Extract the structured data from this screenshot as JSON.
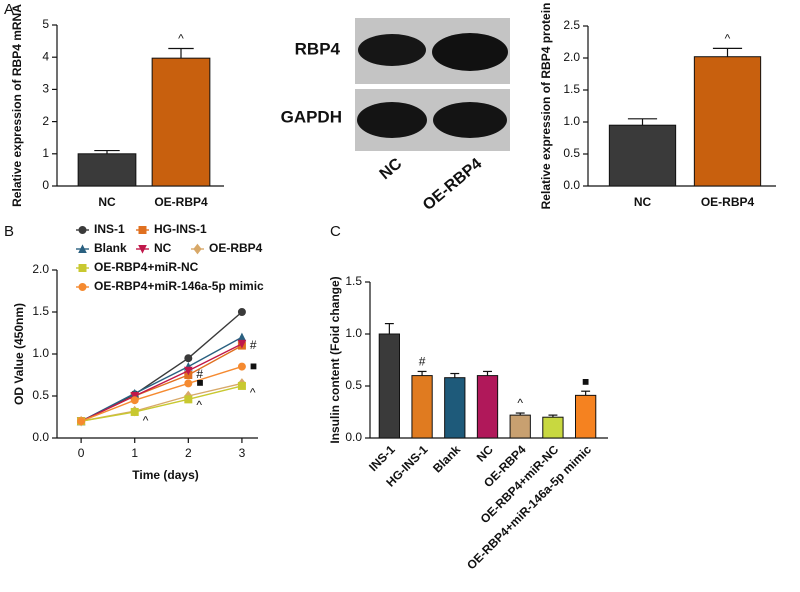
{
  "chart_data": [
    {
      "type": "bar",
      "panel": "A",
      "ylabel": "Relative expression of RBP4 mRNA",
      "categories": [
        "NC",
        "OE-RBP4"
      ],
      "values": [
        1.0,
        3.97
      ],
      "errors": [
        0.1,
        0.3
      ],
      "colors": [
        "#3a3a3a",
        "#c8600e"
      ],
      "annotations": [
        null,
        "^"
      ],
      "ylim": [
        0,
        5
      ],
      "yticks": [
        0,
        1,
        2,
        3,
        4,
        5
      ]
    },
    {
      "type": "bar",
      "ylabel": "Relative expression of RBP4 protein",
      "categories": [
        "NC",
        "OE-RBP4"
      ],
      "values": [
        0.95,
        2.02
      ],
      "errors": [
        0.1,
        0.13
      ],
      "colors": [
        "#3a3a3a",
        "#c8600e"
      ],
      "annotations": [
        null,
        "^"
      ],
      "ylim": [
        0,
        2.5
      ],
      "yticks": [
        {
          "value": 0,
          "label": "0.0"
        },
        0.5,
        {
          "value": 1,
          "label": "1.0"
        },
        1.5,
        {
          "value": 2,
          "label": "2.0"
        },
        2.5
      ]
    },
    {
      "type": "line",
      "panel": "B",
      "xlabel": "Time (days)",
      "ylabel": "OD Value (450nm)",
      "x": [
        0,
        1,
        2,
        3
      ],
      "series": [
        {
          "name": "INS-1",
          "color": "#3a3a3a",
          "marker": "circle",
          "values": [
            0.2,
            0.52,
            0.95,
            1.5
          ]
        },
        {
          "name": "HG-INS-1",
          "color": "#e07020",
          "marker": "square",
          "values": [
            0.2,
            0.5,
            0.75,
            1.1
          ],
          "annotations": [
            null,
            null,
            "#",
            "#"
          ]
        },
        {
          "name": "Blank",
          "color": "#2a6080",
          "marker": "triangle",
          "values": [
            0.2,
            0.53,
            0.85,
            1.2
          ]
        },
        {
          "name": "NC",
          "color": "#c0184a",
          "marker": "triangle-down",
          "values": [
            0.2,
            0.5,
            0.8,
            1.12
          ]
        },
        {
          "name": "OE-RBP4",
          "color": "#d8a868",
          "marker": "diamond",
          "values": [
            0.2,
            0.32,
            0.5,
            0.65
          ],
          "annotations": [
            null,
            "^",
            "^",
            "^"
          ]
        },
        {
          "name": "OE-RBP4+miR-NC",
          "color": "#c8c830",
          "marker": "square",
          "values": [
            0.2,
            0.31,
            0.46,
            0.62
          ]
        },
        {
          "name": "OE-RBP4+miR-146a-5p mimic",
          "color": "#f58a30",
          "marker": "circle",
          "values": [
            0.2,
            0.45,
            0.65,
            0.85
          ],
          "annotations": [
            null,
            null,
            "■",
            "■"
          ]
        }
      ],
      "xlim": [
        -0.45,
        3.3
      ],
      "xticks": [
        0,
        1,
        2,
        3
      ],
      "ylim": [
        0,
        2
      ],
      "yticks": [
        {
          "value": 0,
          "label": "0.0"
        },
        0.5,
        {
          "value": 1,
          "label": "1.0"
        },
        1.5,
        {
          "value": 2,
          "label": "2.0"
        }
      ]
    },
    {
      "type": "bar",
      "panel": "C",
      "ylabel": "Insulin content (Foid change)",
      "categories": [
        "INS-1",
        "HG-INS-1",
        "Blank",
        "NC",
        "OE-RBP4",
        "OE-RBP4+miR-NC",
        "OE-RBP4+miR-146a-5p mimic"
      ],
      "values": [
        1.0,
        0.6,
        0.58,
        0.6,
        0.22,
        0.2,
        0.41
      ],
      "errors": [
        0.1,
        0.04,
        0.04,
        0.04,
        0.02,
        0.02,
        0.04
      ],
      "colors": [
        "#3a3a3a",
        "#e07b20",
        "#1e5a7a",
        "#b0185a",
        "#c8a070",
        "#c8d840",
        "#f58220"
      ],
      "annotations": [
        null,
        "#",
        null,
        null,
        "^",
        null,
        "■"
      ],
      "ylim": [
        0,
        1.5
      ],
      "yticks": [
        {
          "value": 0,
          "label": "0.0"
        },
        0.5,
        {
          "value": 1,
          "label": "1.0"
        },
        1.5
      ]
    }
  ],
  "blot": {
    "rows": [
      "RBP4",
      "GAPDH"
    ],
    "lanes": [
      "NC",
      "OE-RBP4"
    ]
  }
}
